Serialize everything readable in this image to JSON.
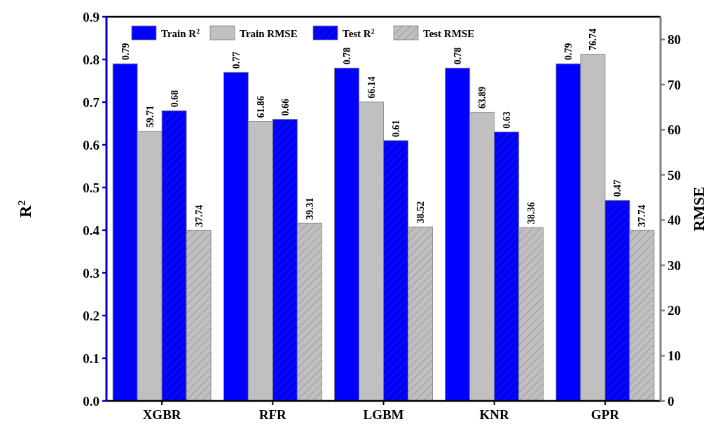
{
  "chart_data": {
    "type": "bar",
    "ylabel": "R$^{2}$",
    "y2label": "RMSE",
    "categories": [
      "XGBR",
      "RFR",
      "LGBM",
      "KNR",
      "GPR"
    ],
    "series": [
      {
        "name": "Train R$^{2}$",
        "color": "#0000ff",
        "values": [
          0.79,
          0.77,
          0.78,
          0.78,
          0.79
        ]
      },
      {
        "name": "Train RMSE",
        "color": "#c0c0c0",
        "axis": "y2",
        "values": [
          59.71,
          61.86,
          66.14,
          63.89,
          76.74
        ]
      },
      {
        "name": "Test R$^{2}$",
        "color": "#0000ff",
        "values": [
          0.68,
          0.66,
          0.61,
          0.63,
          0.47
        ]
      },
      {
        "name": "Test RMSE",
        "color": "#c0c0c0",
        "axis": "y2",
        "values": [
          37.74,
          39.31,
          38.52,
          38.36,
          37.74
        ]
      }
    ],
    "ylim": [
      0,
      0.9
    ],
    "yticks": [
      {
        "value": 0,
        "label": "0.0"
      },
      0.1,
      0.2,
      0.3,
      0.4,
      0.5,
      0.6,
      0.7,
      0.8,
      0.9
    ],
    "y2lim": [
      0,
      85
    ],
    "y2ticks": [
      0,
      10,
      20,
      30,
      40,
      50,
      60,
      70,
      80
    ],
    "data_labels": true,
    "legend": "top",
    "grid": false
  }
}
